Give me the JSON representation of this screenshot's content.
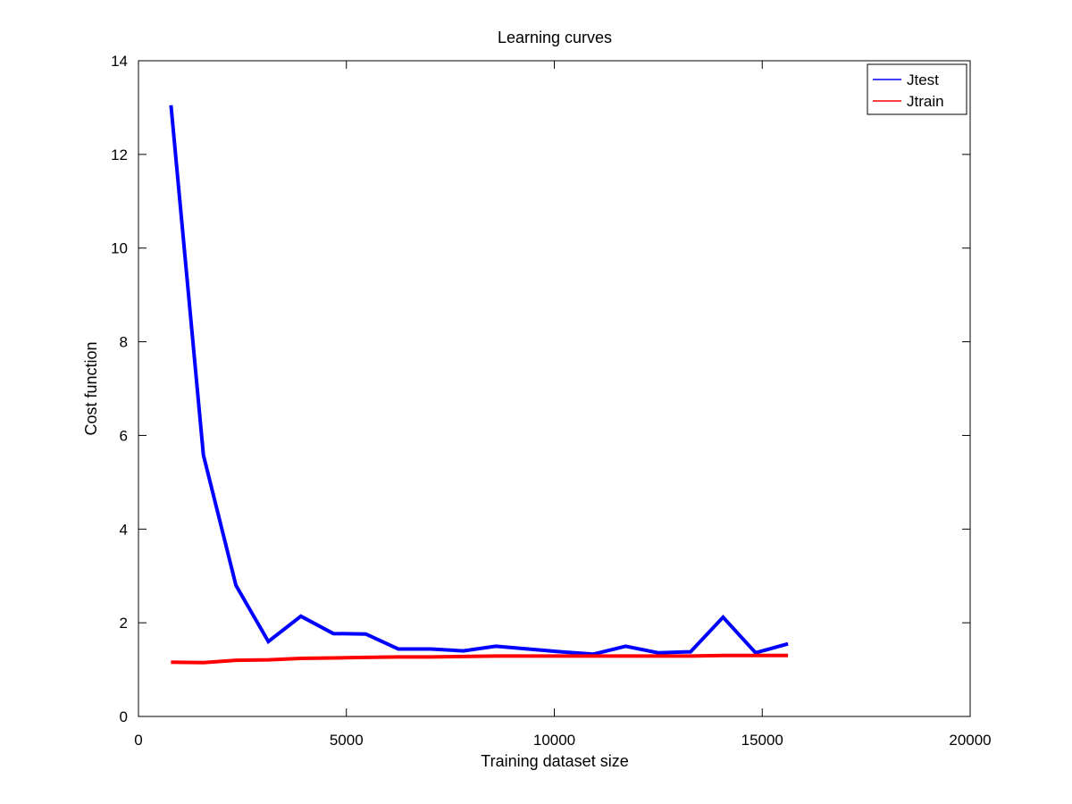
{
  "chart_data": {
    "type": "line",
    "title": "Learning curves",
    "xlabel": "Training dataset size",
    "ylabel": "Cost function",
    "xlim": [
      0,
      20000
    ],
    "ylim": [
      0,
      14
    ],
    "xticks": [
      0,
      5000,
      10000,
      15000,
      20000
    ],
    "yticks": [
      0,
      2,
      4,
      6,
      8,
      10,
      12,
      14
    ],
    "xtick_labels": [
      "0",
      "5000",
      "10000",
      "15000",
      "20000"
    ],
    "ytick_labels": [
      "0",
      "2",
      "4",
      "6",
      "8",
      "10",
      "12",
      "14"
    ],
    "grid": false,
    "legend_position": "top-right",
    "x": [
      781,
      1562,
      2343,
      3124,
      3905,
      4686,
      5467,
      6248,
      7029,
      7810,
      8591,
      9372,
      10153,
      10934,
      11715,
      12496,
      13277,
      14058,
      14839,
      15620
    ],
    "series": [
      {
        "name": "Jtest",
        "color": "#0000ff",
        "values": [
          13.05,
          5.58,
          2.8,
          1.6,
          2.14,
          1.77,
          1.76,
          1.44,
          1.44,
          1.4,
          1.5,
          1.44,
          1.38,
          1.33,
          1.5,
          1.36,
          1.38,
          2.12,
          1.36,
          1.55
        ]
      },
      {
        "name": "Jtrain",
        "color": "#ff0000",
        "values": [
          1.16,
          1.15,
          1.2,
          1.21,
          1.24,
          1.25,
          1.26,
          1.27,
          1.27,
          1.28,
          1.29,
          1.29,
          1.29,
          1.29,
          1.29,
          1.29,
          1.29,
          1.3,
          1.3,
          1.3
        ]
      }
    ]
  }
}
